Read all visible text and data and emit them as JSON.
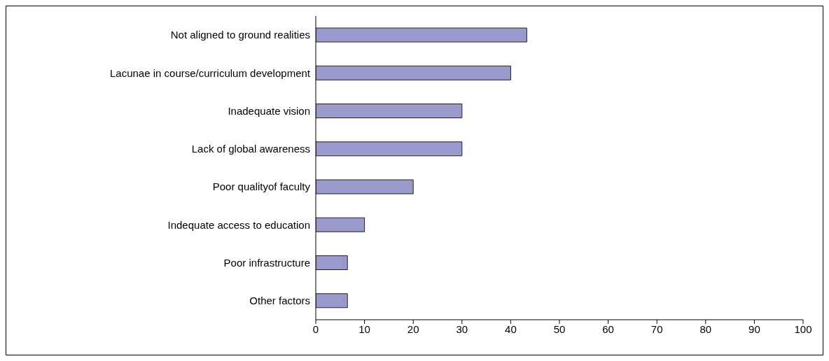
{
  "chart_data": {
    "type": "bar",
    "orientation": "horizontal",
    "categories": [
      "Not aligned to ground realities",
      "Lacunae in course/curriculum development",
      "Inadequate vision",
      "Lack of global awareness",
      "Poor qualityof faculty",
      "Indequate access to education",
      "Poor infrastructure",
      "Other factors"
    ],
    "values": [
      43.3,
      40,
      30,
      30,
      20,
      10,
      6.5,
      6.5
    ],
    "color": "#9999cc",
    "xlim": [
      0,
      100
    ],
    "xticks": [
      0,
      10,
      20,
      30,
      40,
      50,
      60,
      70,
      80,
      90,
      100
    ],
    "grid": false
  }
}
